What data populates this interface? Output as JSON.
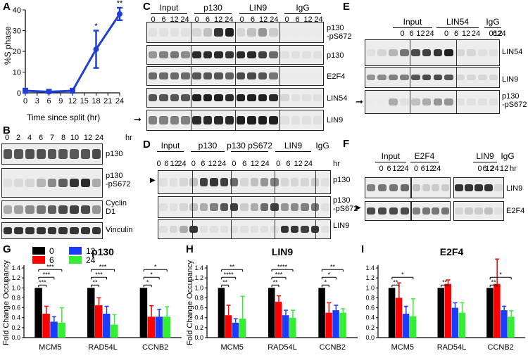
{
  "panels": {
    "A": "A",
    "B": "B",
    "C": "C",
    "D": "D",
    "E": "E",
    "F": "F",
    "G": "G",
    "H": "H",
    "I": "I"
  },
  "panel_a": {
    "ylabel": "%S phase",
    "xlabel": "Time since split (hr)",
    "x_ticks": [
      "0",
      "3",
      "6",
      "9",
      "12",
      "15",
      "18",
      "21",
      "24"
    ],
    "y_ticks": [
      "0",
      "10",
      "20",
      "30",
      "40"
    ],
    "sig": [
      "*",
      "**"
    ]
  },
  "panel_b": {
    "times": [
      "0",
      "2",
      "4",
      "6",
      "7",
      "8",
      "10",
      "12",
      "24"
    ],
    "unit": "hr",
    "rows": [
      "p130",
      "p130\n-pS672",
      "Cyclin\nD1",
      "Vinculin"
    ]
  },
  "panel_c": {
    "groups": [
      "Input",
      "p130",
      "LIN9",
      "IgG"
    ],
    "times": [
      "0",
      "6",
      "12",
      "24"
    ],
    "rows": [
      "p130\n-pS672",
      "p130",
      "E2F4",
      "LIN54",
      "LIN9"
    ]
  },
  "panel_d": {
    "groups": [
      "Input",
      "p130",
      "p130 pS672",
      "LIN9",
      "IgG"
    ],
    "times": [
      "0",
      "6",
      "12",
      "24"
    ],
    "unit": "hr",
    "rows": [
      "p130",
      "p130\n-pS672",
      "LIN9"
    ]
  },
  "panel_e": {
    "groups": [
      "Input",
      "LIN54",
      "IgG"
    ],
    "times": [
      "0",
      "6",
      "12",
      "24"
    ],
    "rows": [
      "LIN54",
      "LIN9",
      "p130\n-pS672"
    ]
  },
  "panel_f": {
    "groups": [
      "Input",
      "E2F4",
      "LIN9",
      "IgG"
    ],
    "times": [
      "0",
      "6",
      "12",
      "24"
    ],
    "igg_time": "12",
    "unit": "hr",
    "rows": [
      "LIN9",
      "E2F4"
    ]
  },
  "legend": {
    "labels": [
      "0",
      "12",
      "6",
      "24"
    ]
  },
  "colors": {
    "0": "#000000",
    "6": "#ff0000",
    "12": "#1a3cff",
    "24": "#33ee33",
    "line": "#1f3fd6"
  },
  "chart_data": [
    {
      "type": "line",
      "title": "",
      "xlabel": "Time since split (hr)",
      "ylabel": "%S phase",
      "x": [
        0,
        6,
        12,
        18,
        24
      ],
      "y": [
        1,
        0.5,
        1,
        21,
        38
      ],
      "err": [
        1,
        1,
        1,
        9,
        3
      ],
      "xlim": [
        0,
        24
      ],
      "ylim": [
        0,
        40
      ],
      "significance": {
        "18": "*",
        "24": "**"
      }
    },
    {
      "type": "bar",
      "title": "p130",
      "ylabel": "Fold Change Occupancy",
      "categories": [
        "MCM5",
        "RAD54L",
        "CCNB2"
      ],
      "ylim": [
        0,
        1.4
      ],
      "y_ticks": [
        "0.0",
        "0.2",
        "0.4",
        "0.6",
        "0.8",
        "1.0",
        "1.2",
        "1.4"
      ],
      "series": [
        {
          "name": "0",
          "values": [
            1.0,
            1.0,
            1.0
          ],
          "err": [
            0,
            0,
            0
          ]
        },
        {
          "name": "6",
          "values": [
            0.48,
            0.65,
            0.42
          ],
          "err": [
            0.15,
            0.15,
            0.22
          ]
        },
        {
          "name": "12",
          "values": [
            0.32,
            0.48,
            0.42
          ],
          "err": [
            0.1,
            0.15,
            0.15
          ]
        },
        {
          "name": "24",
          "values": [
            0.3,
            0.26,
            0.42
          ],
          "err": [
            0.3,
            0.2,
            0.2
          ]
        }
      ],
      "significance": [
        {
          "cat": 0,
          "to": 1,
          "label": "***"
        },
        {
          "cat": 0,
          "to": 2,
          "label": "***"
        },
        {
          "cat": 0,
          "to": 3,
          "label": "***"
        },
        {
          "cat": 1,
          "to": 1,
          "label": "**"
        },
        {
          "cat": 1,
          "to": 2,
          "label": "***"
        },
        {
          "cat": 1,
          "to": 3,
          "label": "***"
        },
        {
          "cat": 2,
          "to": 1,
          "label": "*"
        },
        {
          "cat": 2,
          "to": 2,
          "label": "*"
        },
        {
          "cat": 2,
          "to": 3,
          "label": "*"
        }
      ]
    },
    {
      "type": "bar",
      "title": "LIN9",
      "ylabel": "Fold Change Occupancy",
      "categories": [
        "MCM5",
        "RAD54L",
        "CCNB2"
      ],
      "ylim": [
        0,
        1.4
      ],
      "y_ticks": [
        "0.0",
        "0.2",
        "0.4",
        "0.6",
        "0.8",
        "1.0",
        "1.2",
        "1.4"
      ],
      "series": [
        {
          "name": "0",
          "values": [
            1.0,
            1.0,
            1.0
          ],
          "err": [
            0,
            0,
            0
          ]
        },
        {
          "name": "6",
          "values": [
            0.45,
            0.72,
            0.5
          ],
          "err": [
            0.2,
            0.12,
            0.2
          ]
        },
        {
          "name": "12",
          "values": [
            0.3,
            0.45,
            0.55
          ],
          "err": [
            0.08,
            0.1,
            0.1
          ]
        },
        {
          "name": "24",
          "values": [
            0.38,
            0.4,
            0.5
          ],
          "err": [
            0.45,
            0.15,
            0.08
          ]
        }
      ],
      "significance": [
        {
          "cat": 0,
          "to": 1,
          "label": "**"
        },
        {
          "cat": 0,
          "to": 2,
          "label": "****"
        },
        {
          "cat": 0,
          "to": 3,
          "label": "**"
        },
        {
          "cat": 1,
          "to": 1,
          "label": "**"
        },
        {
          "cat": 1,
          "to": 2,
          "label": "***"
        },
        {
          "cat": 1,
          "to": 3,
          "label": "****"
        },
        {
          "cat": 2,
          "to": 1,
          "label": "*"
        },
        {
          "cat": 2,
          "to": 2,
          "label": "*"
        },
        {
          "cat": 2,
          "to": 3,
          "label": "**"
        }
      ]
    },
    {
      "type": "bar",
      "title": "E2F4",
      "ylabel": "",
      "categories": [
        "MCM5",
        "RAD54L",
        "CCNB2"
      ],
      "ylim": [
        0,
        1.4
      ],
      "y_ticks": [
        "0.0",
        "0.2",
        "0.4",
        "0.6",
        "0.8",
        "1.0",
        "1.2",
        "1.4"
      ],
      "series": [
        {
          "name": "0",
          "values": [
            1.0,
            1.0,
            1.0
          ],
          "err": [
            0,
            0,
            0
          ]
        },
        {
          "name": "6",
          "values": [
            0.8,
            1.08,
            1.08
          ],
          "err": [
            0.3,
            0.08,
            0.5
          ]
        },
        {
          "name": "12",
          "values": [
            0.48,
            0.6,
            0.55
          ],
          "err": [
            0.15,
            0.1,
            0.08
          ]
        },
        {
          "name": "24",
          "values": [
            0.43,
            0.5,
            0.42
          ],
          "err": [
            0.35,
            0.2,
            0.12
          ]
        }
      ],
      "significance": [
        {
          "cat": 0,
          "to": 1,
          "label": "**"
        },
        {
          "cat": 0,
          "to": 3,
          "label": "*"
        },
        {
          "cat": 1,
          "to": 1,
          "label": "**"
        },
        {
          "cat": 2,
          "to": 1,
          "label": "**"
        },
        {
          "cat": 2,
          "to": 3,
          "label": "*"
        }
      ]
    }
  ]
}
